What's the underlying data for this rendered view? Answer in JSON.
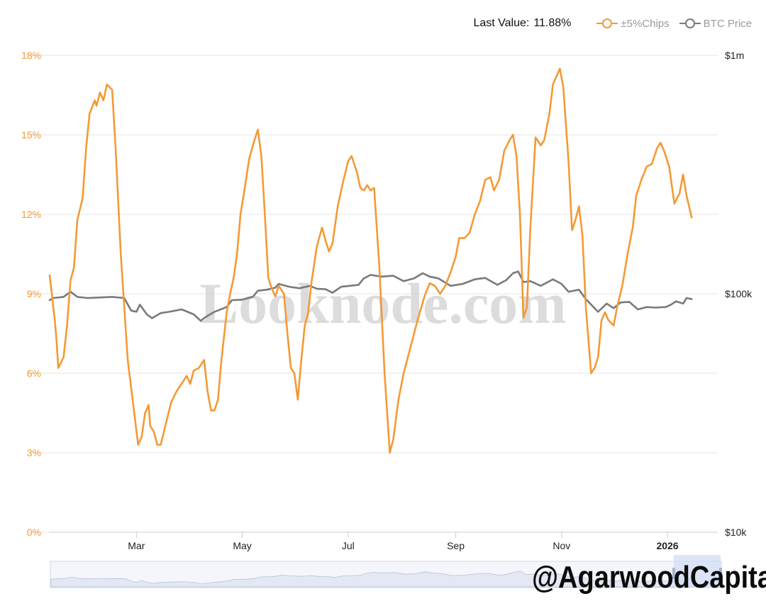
{
  "header": {
    "last_value_label": "Last Value:",
    "last_value": "11.88%"
  },
  "legend": [
    {
      "name": "±5%Chips",
      "color": "#f39a35"
    },
    {
      "name": "BTC Price",
      "color": "#7a7a7a"
    }
  ],
  "watermark": "Looknode.com",
  "handle": "@AgarwoodCapital",
  "chart_data": {
    "type": "line",
    "y_left": {
      "ticks": [
        "0%",
        "3%",
        "6%",
        "9%",
        "12%",
        "15%",
        "18%"
      ],
      "values": [
        0,
        3,
        6,
        9,
        12,
        15,
        18
      ],
      "range": [
        0,
        18
      ],
      "color": "#f39a35"
    },
    "y_right": {
      "ticks": [
        "$10k",
        "$100k",
        "$1m"
      ],
      "values": [
        10000,
        100000,
        1000000
      ],
      "scale": "log",
      "range": [
        10000,
        1000000
      ]
    },
    "x_range": [
      "2025-01-10",
      "2026-01-30"
    ],
    "x_ticks": [
      {
        "label": "Mar",
        "date": "2025-03-01",
        "bold": false
      },
      {
        "label": "May",
        "date": "2025-05-01",
        "bold": false
      },
      {
        "label": "Jul",
        "date": "2025-07-01",
        "bold": false
      },
      {
        "label": "Sep",
        "date": "2025-09-01",
        "bold": false
      },
      {
        "label": "Nov",
        "date": "2025-11-01",
        "bold": false
      },
      {
        "label": "2026",
        "date": "2026-01-01",
        "bold": true
      }
    ],
    "grid": true,
    "legend_position": "top-right",
    "series": [
      {
        "name": "±5%Chips",
        "axis": "left",
        "color": "#f39a35",
        "points": [
          [
            "2025-01-10",
            9.7
          ],
          [
            "2025-01-13",
            8.0
          ],
          [
            "2025-01-14",
            7.2
          ],
          [
            "2025-01-15",
            6.2
          ],
          [
            "2025-01-18",
            6.6
          ],
          [
            "2025-01-20",
            7.8
          ],
          [
            "2025-01-22",
            9.5
          ],
          [
            "2025-01-24",
            10.0
          ],
          [
            "2025-01-26",
            11.8
          ],
          [
            "2025-01-29",
            12.6
          ],
          [
            "2025-01-31",
            14.5
          ],
          [
            "2025-02-02",
            15.8
          ],
          [
            "2025-02-05",
            16.3
          ],
          [
            "2025-02-06",
            16.1
          ],
          [
            "2025-02-08",
            16.6
          ],
          [
            "2025-02-10",
            16.3
          ],
          [
            "2025-02-12",
            16.9
          ],
          [
            "2025-02-15",
            16.7
          ],
          [
            "2025-02-17",
            14.5
          ],
          [
            "2025-02-20",
            10.5
          ],
          [
            "2025-02-24",
            6.5
          ],
          [
            "2025-03-02",
            3.3
          ],
          [
            "2025-03-04",
            3.6
          ],
          [
            "2025-03-06",
            4.5
          ],
          [
            "2025-03-08",
            4.8
          ],
          [
            "2025-03-09",
            4.0
          ],
          [
            "2025-03-11",
            3.8
          ],
          [
            "2025-03-13",
            3.3
          ],
          [
            "2025-03-15",
            3.3
          ],
          [
            "2025-03-18",
            4.1
          ],
          [
            "2025-03-21",
            4.9
          ],
          [
            "2025-03-24",
            5.3
          ],
          [
            "2025-03-27",
            5.6
          ],
          [
            "2025-03-30",
            5.9
          ],
          [
            "2025-04-01",
            5.6
          ],
          [
            "2025-04-03",
            6.1
          ],
          [
            "2025-04-06",
            6.2
          ],
          [
            "2025-04-09",
            6.5
          ],
          [
            "2025-04-11",
            5.3
          ],
          [
            "2025-04-13",
            4.6
          ],
          [
            "2025-04-15",
            4.6
          ],
          [
            "2025-04-17",
            5.0
          ],
          [
            "2025-04-19",
            6.5
          ],
          [
            "2025-04-22",
            8.3
          ],
          [
            "2025-04-24",
            9.0
          ],
          [
            "2025-04-26",
            9.6
          ],
          [
            "2025-04-28",
            10.5
          ],
          [
            "2025-04-30",
            12.0
          ],
          [
            "2025-05-02",
            12.8
          ],
          [
            "2025-05-05",
            14.1
          ],
          [
            "2025-05-08",
            14.8
          ],
          [
            "2025-05-10",
            15.2
          ],
          [
            "2025-05-12",
            14.2
          ],
          [
            "2025-05-14",
            12.0
          ],
          [
            "2025-05-16",
            9.6
          ],
          [
            "2025-05-18",
            9.2
          ],
          [
            "2025-05-20",
            8.9
          ],
          [
            "2025-05-22",
            9.3
          ],
          [
            "2025-05-25",
            9.0
          ],
          [
            "2025-05-27",
            7.5
          ],
          [
            "2025-05-29",
            6.2
          ],
          [
            "2025-05-31",
            6.0
          ],
          [
            "2025-06-02",
            5.0
          ],
          [
            "2025-06-04",
            6.5
          ],
          [
            "2025-06-06",
            7.8
          ],
          [
            "2025-06-08",
            8.3
          ],
          [
            "2025-06-10",
            9.5
          ],
          [
            "2025-06-13",
            10.8
          ],
          [
            "2025-06-16",
            11.5
          ],
          [
            "2025-06-18",
            11.0
          ],
          [
            "2025-06-20",
            10.6
          ],
          [
            "2025-06-22",
            10.9
          ],
          [
            "2025-06-25",
            12.3
          ],
          [
            "2025-06-28",
            13.2
          ],
          [
            "2025-07-01",
            14.0
          ],
          [
            "2025-07-03",
            14.2
          ],
          [
            "2025-07-06",
            13.6
          ],
          [
            "2025-07-08",
            13.0
          ],
          [
            "2025-07-10",
            12.9
          ],
          [
            "2025-07-12",
            13.1
          ],
          [
            "2025-07-14",
            12.9
          ],
          [
            "2025-07-16",
            13.0
          ],
          [
            "2025-07-19",
            10.0
          ],
          [
            "2025-07-22",
            6.0
          ],
          [
            "2025-07-25",
            3.0
          ],
          [
            "2025-07-27",
            3.5
          ],
          [
            "2025-07-30",
            5.0
          ],
          [
            "2025-08-02",
            6.0
          ],
          [
            "2025-08-06",
            7.0
          ],
          [
            "2025-08-10",
            8.0
          ],
          [
            "2025-08-14",
            8.9
          ],
          [
            "2025-08-17",
            9.4
          ],
          [
            "2025-08-20",
            9.3
          ],
          [
            "2025-08-23",
            9.0
          ],
          [
            "2025-08-26",
            9.3
          ],
          [
            "2025-08-29",
            9.8
          ],
          [
            "2025-09-01",
            10.4
          ],
          [
            "2025-09-03",
            11.1
          ],
          [
            "2025-09-06",
            11.1
          ],
          [
            "2025-09-09",
            11.3
          ],
          [
            "2025-09-12",
            12.0
          ],
          [
            "2025-09-15",
            12.5
          ],
          [
            "2025-09-18",
            13.3
          ],
          [
            "2025-09-21",
            13.4
          ],
          [
            "2025-09-23",
            12.9
          ],
          [
            "2025-09-26",
            13.3
          ],
          [
            "2025-09-29",
            14.4
          ],
          [
            "2025-10-02",
            14.8
          ],
          [
            "2025-10-04",
            15.0
          ],
          [
            "2025-10-06",
            14.2
          ],
          [
            "2025-10-08",
            12.0
          ],
          [
            "2025-10-10",
            8.1
          ],
          [
            "2025-10-12",
            8.5
          ],
          [
            "2025-10-14",
            11.5
          ],
          [
            "2025-10-17",
            14.9
          ],
          [
            "2025-10-20",
            14.6
          ],
          [
            "2025-10-22",
            14.8
          ],
          [
            "2025-10-25",
            15.8
          ],
          [
            "2025-10-27",
            16.9
          ],
          [
            "2025-10-29",
            17.2
          ],
          [
            "2025-10-31",
            17.5
          ],
          [
            "2025-11-02",
            16.8
          ],
          [
            "2025-11-05",
            14.0
          ],
          [
            "2025-11-07",
            11.4
          ],
          [
            "2025-11-09",
            11.8
          ],
          [
            "2025-11-11",
            12.3
          ],
          [
            "2025-11-13",
            11.2
          ],
          [
            "2025-11-15",
            8.5
          ],
          [
            "2025-11-18",
            6.0
          ],
          [
            "2025-11-20",
            6.2
          ],
          [
            "2025-11-22",
            6.6
          ],
          [
            "2025-11-24",
            8.0
          ],
          [
            "2025-11-26",
            8.3
          ],
          [
            "2025-11-28",
            8.0
          ],
          [
            "2025-12-01",
            7.8
          ],
          [
            "2025-12-03",
            8.5
          ],
          [
            "2025-12-06",
            9.3
          ],
          [
            "2025-12-09",
            10.5
          ],
          [
            "2025-12-12",
            11.5
          ],
          [
            "2025-12-14",
            12.7
          ],
          [
            "2025-12-17",
            13.3
          ],
          [
            "2025-12-20",
            13.8
          ],
          [
            "2025-12-23",
            13.9
          ],
          [
            "2025-12-26",
            14.5
          ],
          [
            "2025-12-28",
            14.7
          ],
          [
            "2025-12-30",
            14.4
          ],
          [
            "2026-01-02",
            13.8
          ],
          [
            "2026-01-05",
            12.4
          ],
          [
            "2026-01-08",
            12.8
          ],
          [
            "2026-01-10",
            13.5
          ],
          [
            "2026-01-12",
            12.7
          ],
          [
            "2026-01-15",
            11.88
          ]
        ]
      },
      {
        "name": "BTC Price",
        "axis": "right",
        "color": "#7a7a7a",
        "points": [
          [
            "2025-01-10",
            94000
          ],
          [
            "2025-01-12",
            96000
          ],
          [
            "2025-01-18",
            97000
          ],
          [
            "2025-01-22",
            102000
          ],
          [
            "2025-01-26",
            97000
          ],
          [
            "2025-02-01",
            96000
          ],
          [
            "2025-02-08",
            96500
          ],
          [
            "2025-02-15",
            97000
          ],
          [
            "2025-02-22",
            96000
          ],
          [
            "2025-02-26",
            85000
          ],
          [
            "2025-03-01",
            84000
          ],
          [
            "2025-03-03",
            90000
          ],
          [
            "2025-03-07",
            82000
          ],
          [
            "2025-03-10",
            79000
          ],
          [
            "2025-03-15",
            83000
          ],
          [
            "2025-03-20",
            84000
          ],
          [
            "2025-03-27",
            86000
          ],
          [
            "2025-04-03",
            82000
          ],
          [
            "2025-04-07",
            77000
          ],
          [
            "2025-04-10",
            80000
          ],
          [
            "2025-04-15",
            84000
          ],
          [
            "2025-04-22",
            88000
          ],
          [
            "2025-04-25",
            94000
          ],
          [
            "2025-05-01",
            94500
          ],
          [
            "2025-05-07",
            97000
          ],
          [
            "2025-05-10",
            103000
          ],
          [
            "2025-05-15",
            104000
          ],
          [
            "2025-05-20",
            106000
          ],
          [
            "2025-05-22",
            110000
          ],
          [
            "2025-05-28",
            107000
          ],
          [
            "2025-06-03",
            105500
          ],
          [
            "2025-06-09",
            108000
          ],
          [
            "2025-06-13",
            105000
          ],
          [
            "2025-06-18",
            104500
          ],
          [
            "2025-06-22",
            101000
          ],
          [
            "2025-06-27",
            107000
          ],
          [
            "2025-07-02",
            108000
          ],
          [
            "2025-07-07",
            109000
          ],
          [
            "2025-07-10",
            116000
          ],
          [
            "2025-07-14",
            120000
          ],
          [
            "2025-07-20",
            118000
          ],
          [
            "2025-07-27",
            119000
          ],
          [
            "2025-08-02",
            113000
          ],
          [
            "2025-08-08",
            116000
          ],
          [
            "2025-08-13",
            122000
          ],
          [
            "2025-08-17",
            118000
          ],
          [
            "2025-08-22",
            116000
          ],
          [
            "2025-08-29",
            108000
          ],
          [
            "2025-09-05",
            110000
          ],
          [
            "2025-09-12",
            115000
          ],
          [
            "2025-09-18",
            116500
          ],
          [
            "2025-09-25",
            109000
          ],
          [
            "2025-09-30",
            114000
          ],
          [
            "2025-10-04",
            122000
          ],
          [
            "2025-10-07",
            124000
          ],
          [
            "2025-10-10",
            112000
          ],
          [
            "2025-10-14",
            113000
          ],
          [
            "2025-10-20",
            108000
          ],
          [
            "2025-10-27",
            115000
          ],
          [
            "2025-11-01",
            110000
          ],
          [
            "2025-11-05",
            102000
          ],
          [
            "2025-11-11",
            104000
          ],
          [
            "2025-11-15",
            95000
          ],
          [
            "2025-11-20",
            87000
          ],
          [
            "2025-11-22",
            84000
          ],
          [
            "2025-11-27",
            91000
          ],
          [
            "2025-12-01",
            87000
          ],
          [
            "2025-12-05",
            92000
          ],
          [
            "2025-12-10",
            92500
          ],
          [
            "2025-12-15",
            86000
          ],
          [
            "2025-12-20",
            88000
          ],
          [
            "2025-12-25",
            87500
          ],
          [
            "2025-12-31",
            88000
          ],
          [
            "2026-01-03",
            90000
          ],
          [
            "2026-01-06",
            93000
          ],
          [
            "2026-01-10",
            91000
          ],
          [
            "2026-01-12",
            96000
          ],
          [
            "2026-01-15",
            95000
          ]
        ]
      }
    ]
  }
}
